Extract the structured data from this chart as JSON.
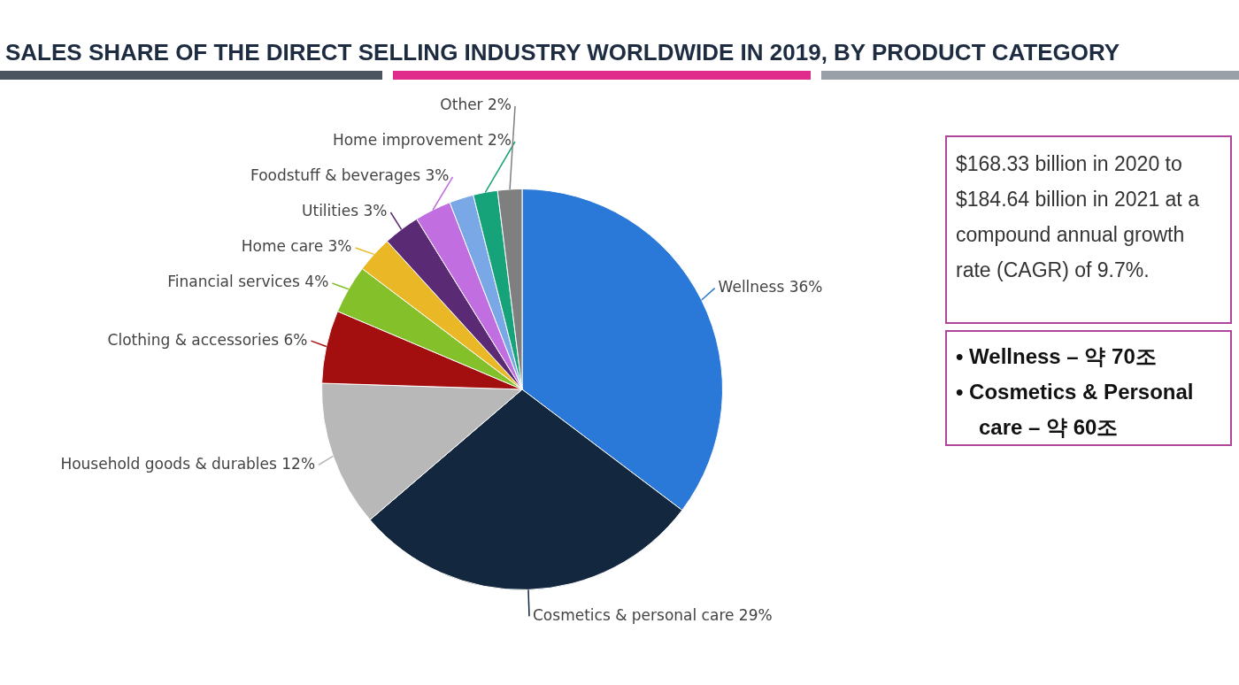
{
  "chart_data": {
    "type": "pie",
    "title": "SALES SHARE OF THE DIRECT SELLING INDUSTRY WORLDWIDE IN 2019, BY PRODUCT CATEGORY",
    "categories": [
      "Wellness",
      "Cosmetics & personal care",
      "Household goods & durables",
      "Clothing & accessories",
      "Financial services",
      "Home care",
      "Utilities",
      "Foodstuff & beverages",
      null,
      "Home improvement",
      "Other"
    ],
    "values": [
      36,
      29,
      12,
      6,
      4,
      3,
      3,
      3,
      2,
      2,
      2
    ],
    "value_labels": [
      "36%",
      "29%",
      "12%",
      "6%",
      "4%",
      "3%",
      "3%",
      "3%",
      null,
      "2%",
      "2%"
    ],
    "colors": [
      "#2a78d8",
      "#13273f",
      "#b8b8b8",
      "#a30e0e",
      "#84c02a",
      "#eab827",
      "#5b2a74",
      "#c06ee0",
      "#7aa7e6",
      "#16a37a",
      "#7f7f7f"
    ],
    "legend": false,
    "annotations": [
      "$168.33 billion in 2020 to $184.64 billion in 2021 at a compound annual growth rate (CAGR) of 9.7%.",
      "• Wellness – 약 70조",
      "• Cosmetics & Personal care – 약 60조"
    ]
  }
}
